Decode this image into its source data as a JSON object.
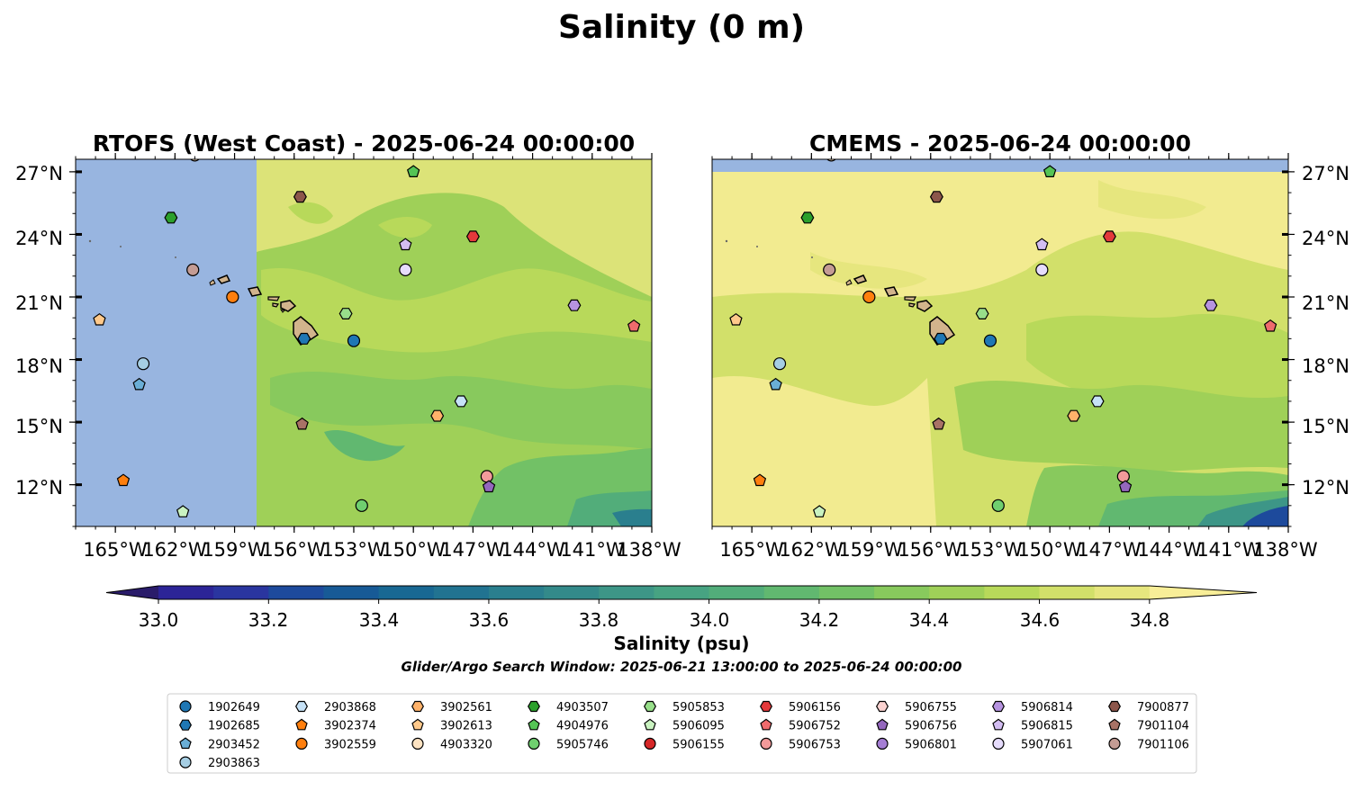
{
  "figure": {
    "title": "Salinity (0 m)",
    "colorbar_label": "Salinity (psu)",
    "search_window": "Glider/Argo Search Window: 2025-06-21 13:00:00 to 2025-06-24 00:00:00"
  },
  "chart_data": [
    {
      "type": "heatmap",
      "title": "RTOFS (West Coast) - 2025-06-24 00:00:00",
      "variable": "Salinity",
      "units": "psu",
      "xlim": [
        -167,
        -138
      ],
      "ylim": [
        10,
        27.6
      ],
      "no_data_region": {
        "lon_max": -157.9,
        "color": "#98b5e0"
      },
      "x_ticks": [
        -165,
        -162,
        -159,
        -156,
        -153,
        -150,
        -147,
        -144,
        -141,
        -138
      ],
      "x_tick_labels": [
        "165°W",
        "162°W",
        "159°W",
        "156°W",
        "153°W",
        "150°W",
        "147°W",
        "144°W",
        "141°W",
        "138°W"
      ],
      "y_ticks": [
        12,
        15,
        18,
        21,
        24,
        27
      ],
      "y_tick_labels": [
        "12°N",
        "15°N",
        "18°N",
        "21°N",
        "24°N",
        "27°N"
      ],
      "y_axis_side": "left"
    },
    {
      "type": "heatmap",
      "title": "CMEMS - 2025-06-24 00:00:00",
      "variable": "Salinity",
      "units": "psu",
      "xlim": [
        -167,
        -138
      ],
      "ylim": [
        10,
        27.6
      ],
      "no_data_region": {
        "lat_min": 27.05,
        "color": "#98b5e0"
      },
      "x_ticks": [
        -165,
        -162,
        -159,
        -156,
        -153,
        -150,
        -147,
        -144,
        -141,
        -138
      ],
      "x_tick_labels": [
        "165°W",
        "162°W",
        "159°W",
        "156°W",
        "153°W",
        "150°W",
        "147°W",
        "144°W",
        "141°W",
        "138°W"
      ],
      "y_ticks": [
        12,
        15,
        18,
        21,
        24,
        27
      ],
      "y_tick_labels": [
        "12°N",
        "15°N",
        "18°N",
        "21°N",
        "24°N",
        "27°N"
      ],
      "y_axis_side": "right"
    }
  ],
  "colorbar": {
    "vmin": 32.9,
    "vmax": 34.9,
    "step": 0.1,
    "extend": "both",
    "ticks": [
      "33.0",
      "33.2",
      "33.4",
      "33.6",
      "33.8",
      "34.0",
      "34.2",
      "34.4",
      "34.6",
      "34.8"
    ],
    "colors": [
      "#2a1c6a",
      "#2c2497",
      "#2a359f",
      "#1d4a9c",
      "#175a96",
      "#186893",
      "#217391",
      "#2a7f8e",
      "#338a8a",
      "#3d9687",
      "#47a382",
      "#52ad7a",
      "#61b870",
      "#72c166",
      "#88c95d",
      "#9fd058",
      "#b8d95a",
      "#d2e06a",
      "#e6e67e",
      "#f2eb90"
    ],
    "under_color": "#2a1c6a",
    "over_color": "#f8ee98"
  },
  "floats": [
    {
      "id": "1902649",
      "marker": "circle",
      "color": "#1f77b4",
      "lon": -153.0,
      "lat": 18.9
    },
    {
      "id": "1902685",
      "marker": "hexagon",
      "color": "#1f77b4",
      "lon": -155.5,
      "lat": 19.0
    },
    {
      "id": "2903452",
      "marker": "pentagon",
      "color": "#6aaed6",
      "lon": -163.8,
      "lat": 16.8
    },
    {
      "id": "2903863",
      "marker": "circle",
      "color": "#a6cee3",
      "lon": -163.6,
      "lat": 17.8
    },
    {
      "id": "2903868",
      "marker": "hexagon",
      "color": "#c6e2f7",
      "lon": -147.6,
      "lat": 16.0
    },
    {
      "id": "3902374",
      "marker": "pentagon",
      "color": "#ff7f0e",
      "lon": -164.6,
      "lat": 12.2
    },
    {
      "id": "3902559",
      "marker": "circle",
      "color": "#ff7f0e",
      "lon": -159.1,
      "lat": 21.0
    },
    {
      "id": "3902561",
      "marker": "hexagon",
      "color": "#ffb26a",
      "lon": -148.8,
      "lat": 15.3
    },
    {
      "id": "3902613",
      "marker": "pentagon",
      "color": "#ffc98b",
      "lon": -165.8,
      "lat": 19.9
    },
    {
      "id": "4903320",
      "marker": "circle",
      "color": "#fde3c2",
      "lon": -161.0,
      "lat": 27.8
    },
    {
      "id": "4903507",
      "marker": "hexagon",
      "color": "#2ca02c",
      "lon": -162.2,
      "lat": 24.8
    },
    {
      "id": "4904976",
      "marker": "pentagon",
      "color": "#55c455",
      "lon": -150.0,
      "lat": 27.0
    },
    {
      "id": "5905746",
      "marker": "circle",
      "color": "#6fcf6f",
      "lon": -152.6,
      "lat": 11.0
    },
    {
      "id": "5905853",
      "marker": "hexagon",
      "color": "#98df8a",
      "lon": -153.4,
      "lat": 20.2
    },
    {
      "id": "5906095",
      "marker": "pentagon",
      "color": "#c9f2c0",
      "lon": -161.6,
      "lat": 10.7
    },
    {
      "id": "5906155",
      "marker": "circle",
      "color": "#d62728",
      "lon": -160.8,
      "lat": 28.2
    },
    {
      "id": "5906156",
      "marker": "hexagon",
      "color": "#e3393b",
      "lon": -147.0,
      "lat": 23.9
    },
    {
      "id": "5906752",
      "marker": "pentagon",
      "color": "#ef6b6d",
      "lon": -138.9,
      "lat": 19.6
    },
    {
      "id": "5906753",
      "marker": "circle",
      "color": "#f29a9a",
      "lon": -146.3,
      "lat": 12.4
    },
    {
      "id": "5906755",
      "marker": "hexagon",
      "color": "#fbd2d0",
      "lon": -161.2,
      "lat": 28.6
    },
    {
      "id": "5906756",
      "marker": "pentagon",
      "color": "#9467bd",
      "lon": -146.2,
      "lat": 11.9
    },
    {
      "id": "5906801",
      "marker": "circle",
      "color": "#a57ed4",
      "lon": -161.1,
      "lat": 27.9
    },
    {
      "id": "5906814",
      "marker": "hexagon",
      "color": "#b693e0",
      "lon": -141.9,
      "lat": 20.6
    },
    {
      "id": "5906815",
      "marker": "pentagon",
      "color": "#d3bdf2",
      "lon": -150.4,
      "lat": 23.5
    },
    {
      "id": "5907061",
      "marker": "circle",
      "color": "#e6dcfc",
      "lon": -150.4,
      "lat": 22.3
    },
    {
      "id": "7900877",
      "marker": "hexagon",
      "color": "#8c564b",
      "lon": -155.7,
      "lat": 25.8
    },
    {
      "id": "7901104",
      "marker": "pentagon",
      "color": "#a87266",
      "lon": -155.6,
      "lat": 14.9
    },
    {
      "id": "7901106",
      "marker": "circle",
      "color": "#c49c94",
      "lon": -161.1,
      "lat": 22.3
    }
  ],
  "colors": {
    "land": "#d2b48c",
    "no_data": "#98b5e0"
  }
}
